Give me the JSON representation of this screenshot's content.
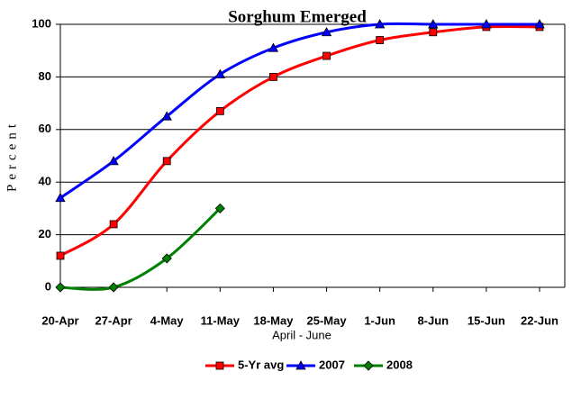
{
  "chart_data": {
    "type": "line",
    "title": "Sorghum Emerged",
    "xlabel": "April - June",
    "ylabel": "Percent",
    "categories": [
      "20-Apr",
      "27-Apr",
      "4-May",
      "11-May",
      "18-May",
      "25-May",
      "1-Jun",
      "8-Jun",
      "15-Jun",
      "22-Jun"
    ],
    "series": [
      {
        "name": "5-Yr avg",
        "color": "#ff0000",
        "marker": "square",
        "values": [
          12,
          24,
          48,
          67,
          80,
          88,
          94,
          97,
          99,
          99
        ]
      },
      {
        "name": "2007",
        "color": "#0000ff",
        "marker": "triangle",
        "values": [
          34,
          48,
          65,
          81,
          91,
          97,
          100,
          100,
          100,
          100
        ]
      },
      {
        "name": "2008",
        "color": "#008000",
        "marker": "diamond",
        "values": [
          0,
          0,
          11,
          30,
          null,
          null,
          null,
          null,
          null,
          null
        ]
      }
    ],
    "ylim": [
      0,
      100
    ],
    "yticks": [
      0,
      20,
      40,
      60,
      80,
      100
    ],
    "grid": true,
    "legend": "bottom"
  }
}
